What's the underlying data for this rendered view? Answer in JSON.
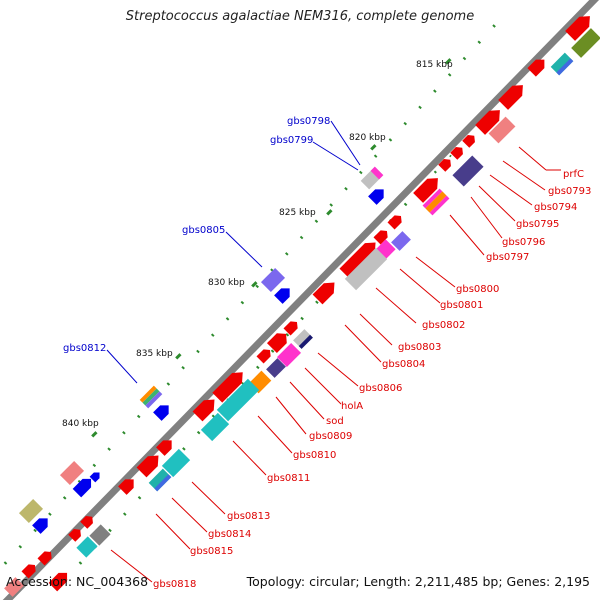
{
  "header": {
    "title": "Streptococcus agalactiae NEM316, complete genome"
  },
  "footer": {
    "accession": "Accession: NC_004368",
    "topology": "Topology: circular; Length: 2,211,485 bp; Genes: 2,195"
  },
  "scale": {
    "ticks": [
      "815 kbp",
      "820 kbp",
      "825 kbp",
      "830 kbp",
      "835 kbp",
      "840 kbp"
    ]
  },
  "colors": {
    "backbone": "#808080",
    "forward_gene": "#ee0000",
    "reverse_gene": "#0000ee",
    "tick": "#2e8b2e",
    "red_label": "#dd0000",
    "blue_label": "#0000cc"
  },
  "genes": {
    "outer_labels": [
      "gbs0798",
      "gbs0799",
      "gbs0805",
      "gbs0812"
    ],
    "inner_labels": [
      "prfC",
      "gbs0793",
      "gbs0794",
      "gbs0795",
      "gbs0796",
      "gbs0797",
      "gbs0800",
      "gbs0801",
      "gbs0802",
      "gbs0803",
      "gbs0804",
      "gbs0806",
      "holA",
      "sod",
      "gbs0809",
      "gbs0810",
      "gbs0811",
      "gbs0813",
      "gbs0814",
      "gbs0815",
      "gbs0818"
    ]
  }
}
